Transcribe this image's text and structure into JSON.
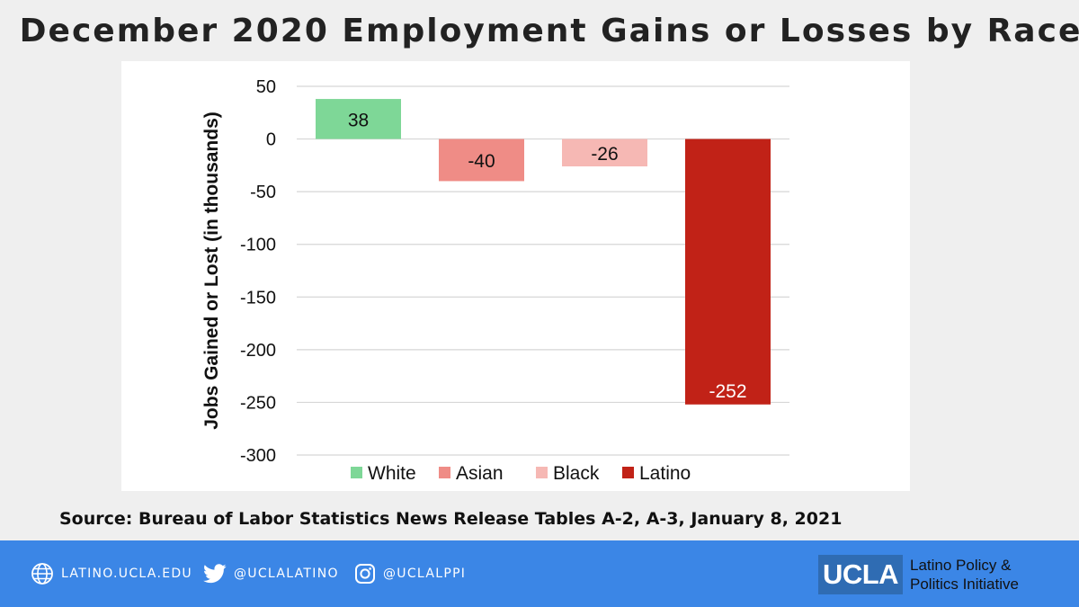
{
  "title": "December 2020 Employment Gains or Losses by Race",
  "source": "Source: Bureau of Labor Statistics News Release Tables A-2, A-3, January 8, 2021",
  "footer": {
    "website": "LATINO.UCLA.EDU",
    "twitter": "@UCLALATINO",
    "instagram": "@UCLALPPI",
    "logo_text": "UCLA",
    "org_line1": "Latino Policy &",
    "org_line2": "Politics Initiative",
    "icons": [
      "globe-icon",
      "twitter-icon",
      "instagram-icon"
    ]
  },
  "chart_data": {
    "type": "bar",
    "categories": [
      "White",
      "Asian",
      "Black",
      "Latino"
    ],
    "values": [
      38,
      -40,
      -26,
      -252
    ],
    "colors": [
      "#7ed797",
      "#ef8c86",
      "#f6b8b4",
      "#c12217"
    ],
    "ylabel": "Jobs Gained or Lost (in thousands)",
    "ylim": [
      -300,
      50
    ],
    "yticks": [
      50,
      0,
      -50,
      -100,
      -150,
      -200,
      -250,
      -300
    ],
    "grid": true,
    "legend": "bottom"
  }
}
